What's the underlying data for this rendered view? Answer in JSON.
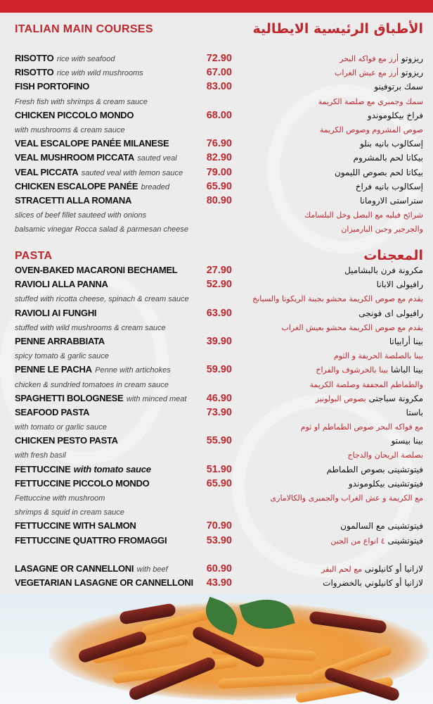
{
  "colors": {
    "accent": "#c0272d",
    "topbar": "#d0222b",
    "text": "#111111",
    "background": "#ececed"
  },
  "main": {
    "title_en": "ITALIAN MAIN COURSES",
    "title_ar": "الأطباق الرئيسية الايطالية",
    "rows": [
      {
        "name": "RISOTTO",
        "desc": "rice with seafood",
        "price": "72.90",
        "ar": "ريزوتو",
        "ar_desc": "أرز مع فواكه البحر"
      },
      {
        "name": "RISOTTO",
        "desc": "rice with wild mushrooms",
        "price": "67.00",
        "ar": "ريزوتو",
        "ar_desc": "أرز مع عيش الغراب"
      },
      {
        "name": "FISH PORTOFINO",
        "price": "83.00",
        "ar": "سمك برتوفينو"
      },
      {
        "note": "Fresh fish with shrimps & cream sauce",
        "ar_desc": "سمك وجمبري مع صلصة الكريمة"
      },
      {
        "name": "CHICKEN PICCOLO MONDO",
        "price": "68.00",
        "ar": "فراخ بيكلوموندو"
      },
      {
        "note": "with mushrooms & cream sauce",
        "ar_desc": "صوص المشروم وصوص الكريمة"
      },
      {
        "name": "VEAL ESCALOPE PANÉE MILANESE",
        "price": "76.90",
        "ar": "إسكالوب بانيه بنلو"
      },
      {
        "name": "VEAL MUSHROOM PICCATA",
        "desc": "sauted veal",
        "price": "82.90",
        "ar": "بيكاتا لحم بالمشروم"
      },
      {
        "name": "VEAL PICCATA",
        "desc": "sauted veal with lemon sauce",
        "price": "79.00",
        "ar": "بيكاتا لحم بصوص الليمون"
      },
      {
        "name": "CHICKEN ESCALOPE PANÉE",
        "desc": "breaded",
        "price": "65.90",
        "ar": "إسكالوب بانيه فراخ"
      },
      {
        "name": "STRACETTI ALLA ROMANA",
        "price": "80.90",
        "ar": "ستراستى الارومانا"
      },
      {
        "note": "slices of beef fillet sauteed with onions",
        "ar_desc": "شرائح فيليه مع البصل وخل البلسامك"
      },
      {
        "note": "balsamic vinegar Rocca salad & parmesan cheese",
        "ar_desc": "والجرجير وجبن البارميزان"
      }
    ]
  },
  "pasta": {
    "title_en": "PASTA",
    "title_ar": "المعجنات",
    "rows": [
      {
        "name": "OVEN-BAKED MACARONI BECHAMEL",
        "price": "27.90",
        "ar": "مكرونة فرن بالبشاميل"
      },
      {
        "name": "RAVIOLI ALLA PANNA",
        "price": "52.90",
        "ar": "رافيولى الابانا"
      },
      {
        "note": "stuffed with ricotta cheese, spinach & cream sauce",
        "ar_desc": "يقدم مع صوص الكريمة محشو بجبنة الريكوتا والسبانخ"
      },
      {
        "name": "RAVIOLI AI FUNGHI",
        "price": "63.90",
        "ar": "رافيولى اى فونجى"
      },
      {
        "note": "stuffed with wild mushrooms & cream sauce",
        "ar_desc": "يقدم مع صوص الكريمة محشو بعيش الغراب"
      },
      {
        "name": "PENNE ARRABBIATA",
        "price": "39.90",
        "ar": "بينا أرابياتا"
      },
      {
        "note": "spicy tomato & garlic sauce",
        "ar_desc": "بينا بالصلصة الحريفة و الثوم"
      },
      {
        "name": "PENNE LE PACHA",
        "desc": "Penne with artichokes",
        "price": "59.90",
        "ar": "بينا الباشا",
        "ar_desc": "بينا بالخرشوف والفراخ"
      },
      {
        "note": "chicken & sundried tomatoes in cream sauce",
        "ar_desc": "والطماطم المجففة وصلصة الكريمة"
      },
      {
        "name": "SPAGHETTI BOLOGNESE",
        "desc": "with minced meat",
        "price": "46.90",
        "ar": "مكرونة سباجتى",
        "ar_desc": "بصوص البولونيز"
      },
      {
        "name": "SEAFOOD PASTA",
        "price": "73.90",
        "ar": "باستا"
      },
      {
        "note": "with tomato or garlic sauce",
        "ar_desc": "مع فواكه البحر  صوص الطماطم او ثوم"
      },
      {
        "name": "CHICKEN PESTO PASTA",
        "price": "55.90",
        "ar": "بينا بيستو"
      },
      {
        "note": "with fresh basil",
        "ar_desc": "بصلصة الريحان والدجاج"
      },
      {
        "name": "FETTUCCINE",
        "desc": "with tomato sauce",
        "desc_strong": true,
        "price": "51.90",
        "ar": "فيتوتشينى بصوص الطماطم"
      },
      {
        "name": "FETTUCCINE PICCOLO MONDO",
        "price": "65.90",
        "ar": "فيتوتشينى بيكلوموندو"
      },
      {
        "note": "Fettuccine with mushroom",
        "ar_desc": "مع الكريمة و عش الغراب والجمبرى والكالامارى"
      },
      {
        "note": " shrimps & squid in cream sauce"
      },
      {
        "name": "FETTUCCINE WITH SALMON",
        "price": "70.90",
        "ar": "فيتوتشينى مع السالمون"
      },
      {
        "name": "FETTUCCINE QUATTRO FROMAGGI",
        "price": "53.90",
        "ar": "فيتوتشينى",
        "ar_desc": "٤ انواع من الجبن"
      },
      {
        "blank": true
      },
      {
        "name": "LASAGNE OR CANNELLONI",
        "desc": "with beef",
        "price": "60.90",
        "ar": "لازانيا  أو كانيلونى",
        "ar_desc": "مع لحم البقر"
      },
      {
        "name": "VEGETARIAN LASAGNE OR CANNELLONI",
        "price": "43.90",
        "ar": "لازانيا أو كانيلوني بالخضروات"
      }
    ]
  },
  "photo": {
    "subject": "penne-pasta-dish"
  }
}
